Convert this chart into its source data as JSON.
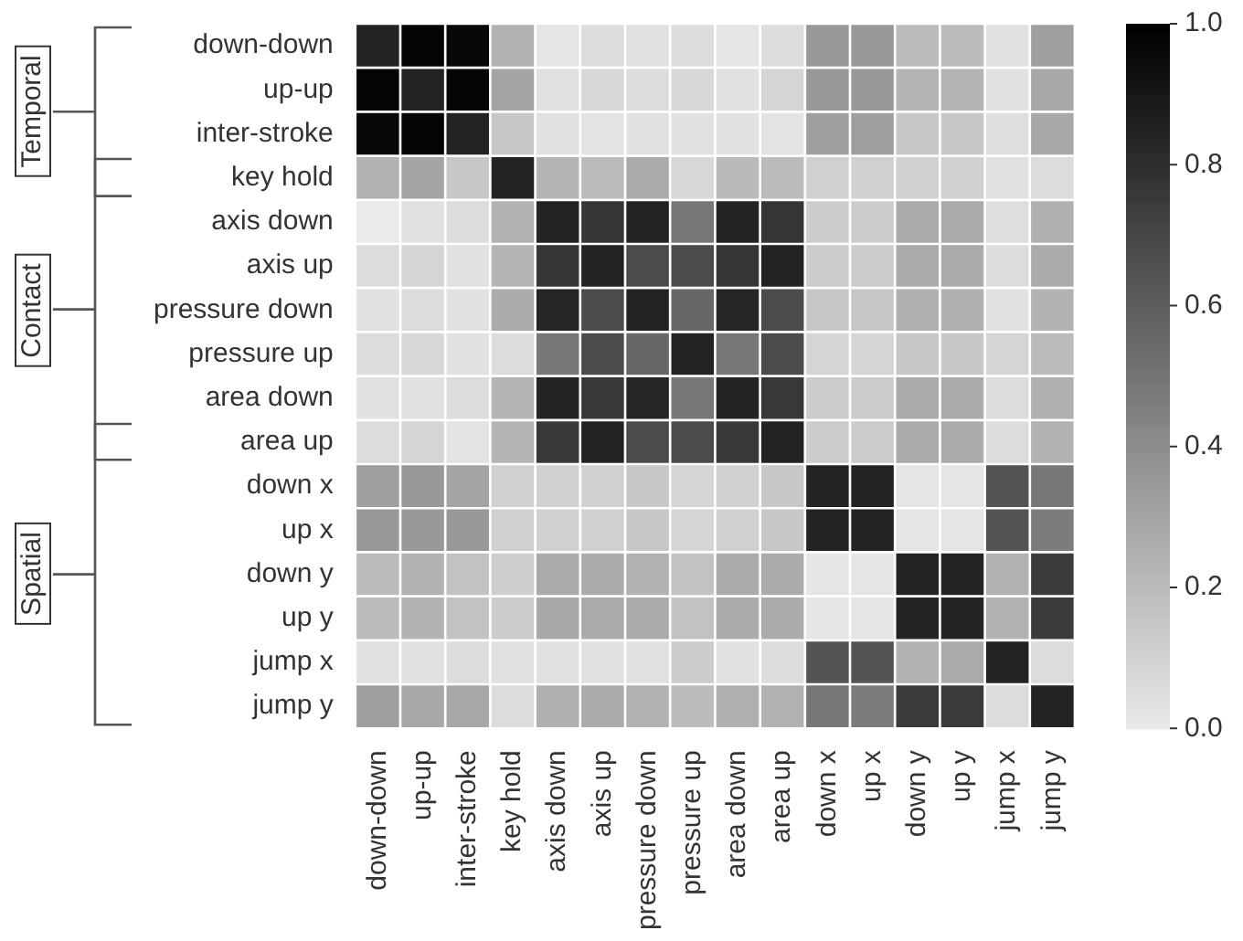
{
  "chart_data": {
    "type": "heatmap",
    "categories": [
      "down-down",
      "up-up",
      "inter-stroke",
      "key hold",
      "axis down",
      "axis up",
      "pressure down",
      "pressure up",
      "area down",
      "area up",
      "down x",
      "up x",
      "down y",
      "up y",
      "jump x",
      "jump y"
    ],
    "y_categories": [
      "down-down",
      "up-up",
      "inter-stroke",
      "key hold",
      "axis down",
      "axis up",
      "pressure down",
      "pressure up",
      "area down",
      "area up",
      "down x",
      "up x",
      "down y",
      "up y",
      "jump x",
      "jump y"
    ],
    "cells": [
      [
        0.85,
        0.98,
        0.97,
        0.24,
        0.02,
        0.06,
        0.04,
        0.06,
        0.02,
        0.06,
        0.35,
        0.35,
        0.2,
        0.2,
        0.04,
        0.32
      ],
      [
        0.98,
        0.85,
        0.98,
        0.3,
        0.04,
        0.08,
        0.06,
        0.08,
        0.04,
        0.09,
        0.35,
        0.35,
        0.23,
        0.23,
        0.04,
        0.28
      ],
      [
        0.97,
        0.98,
        0.85,
        0.15,
        0.04,
        0.03,
        0.04,
        0.04,
        0.04,
        0.03,
        0.32,
        0.32,
        0.15,
        0.15,
        0.05,
        0.28
      ],
      [
        0.24,
        0.3,
        0.15,
        0.85,
        0.23,
        0.2,
        0.27,
        0.08,
        0.21,
        0.2,
        0.11,
        0.11,
        0.11,
        0.11,
        0.04,
        0.06
      ],
      [
        0.0,
        0.04,
        0.06,
        0.24,
        0.85,
        0.77,
        0.85,
        0.49,
        0.85,
        0.77,
        0.13,
        0.13,
        0.27,
        0.27,
        0.05,
        0.25
      ],
      [
        0.06,
        0.09,
        0.04,
        0.23,
        0.77,
        0.85,
        0.68,
        0.68,
        0.77,
        0.85,
        0.13,
        0.13,
        0.27,
        0.27,
        0.06,
        0.27
      ],
      [
        0.04,
        0.06,
        0.04,
        0.27,
        0.84,
        0.68,
        0.85,
        0.56,
        0.84,
        0.68,
        0.15,
        0.15,
        0.25,
        0.25,
        0.04,
        0.24
      ],
      [
        0.06,
        0.08,
        0.04,
        0.06,
        0.49,
        0.68,
        0.56,
        0.85,
        0.49,
        0.68,
        0.09,
        0.09,
        0.15,
        0.15,
        0.09,
        0.2
      ],
      [
        0.04,
        0.04,
        0.06,
        0.23,
        0.85,
        0.76,
        0.84,
        0.49,
        0.85,
        0.76,
        0.13,
        0.13,
        0.27,
        0.27,
        0.06,
        0.25
      ],
      [
        0.06,
        0.09,
        0.03,
        0.23,
        0.76,
        0.85,
        0.68,
        0.68,
        0.76,
        0.85,
        0.13,
        0.13,
        0.27,
        0.27,
        0.06,
        0.24
      ],
      [
        0.32,
        0.35,
        0.3,
        0.11,
        0.11,
        0.11,
        0.15,
        0.09,
        0.11,
        0.15,
        0.85,
        0.85,
        0.02,
        0.02,
        0.64,
        0.49
      ],
      [
        0.35,
        0.35,
        0.35,
        0.11,
        0.11,
        0.11,
        0.15,
        0.09,
        0.11,
        0.15,
        0.85,
        0.85,
        0.02,
        0.02,
        0.64,
        0.47
      ],
      [
        0.2,
        0.24,
        0.17,
        0.12,
        0.27,
        0.27,
        0.24,
        0.17,
        0.27,
        0.27,
        0.02,
        0.02,
        0.85,
        0.85,
        0.24,
        0.75
      ],
      [
        0.2,
        0.24,
        0.17,
        0.13,
        0.28,
        0.27,
        0.27,
        0.17,
        0.27,
        0.27,
        0.02,
        0.02,
        0.85,
        0.85,
        0.24,
        0.75
      ],
      [
        0.04,
        0.04,
        0.06,
        0.04,
        0.04,
        0.04,
        0.04,
        0.13,
        0.04,
        0.06,
        0.64,
        0.64,
        0.24,
        0.27,
        0.85,
        0.06
      ],
      [
        0.32,
        0.28,
        0.28,
        0.06,
        0.25,
        0.27,
        0.24,
        0.2,
        0.25,
        0.24,
        0.49,
        0.47,
        0.75,
        0.75,
        0.06,
        0.85
      ]
    ],
    "clim": [
      0,
      1
    ],
    "cticks": [
      {
        "value": 0,
        "label": "0.0"
      },
      {
        "value": 0.2,
        "label": "0.2"
      },
      {
        "value": 0.4,
        "label": "0.4"
      },
      {
        "value": 0.6,
        "label": "0.6"
      },
      {
        "value": 0.8,
        "label": "0.8"
      },
      {
        "value": 1,
        "label": "1.0"
      }
    ],
    "annotations": [
      "Temporal",
      "Contact",
      "Spatial"
    ]
  }
}
